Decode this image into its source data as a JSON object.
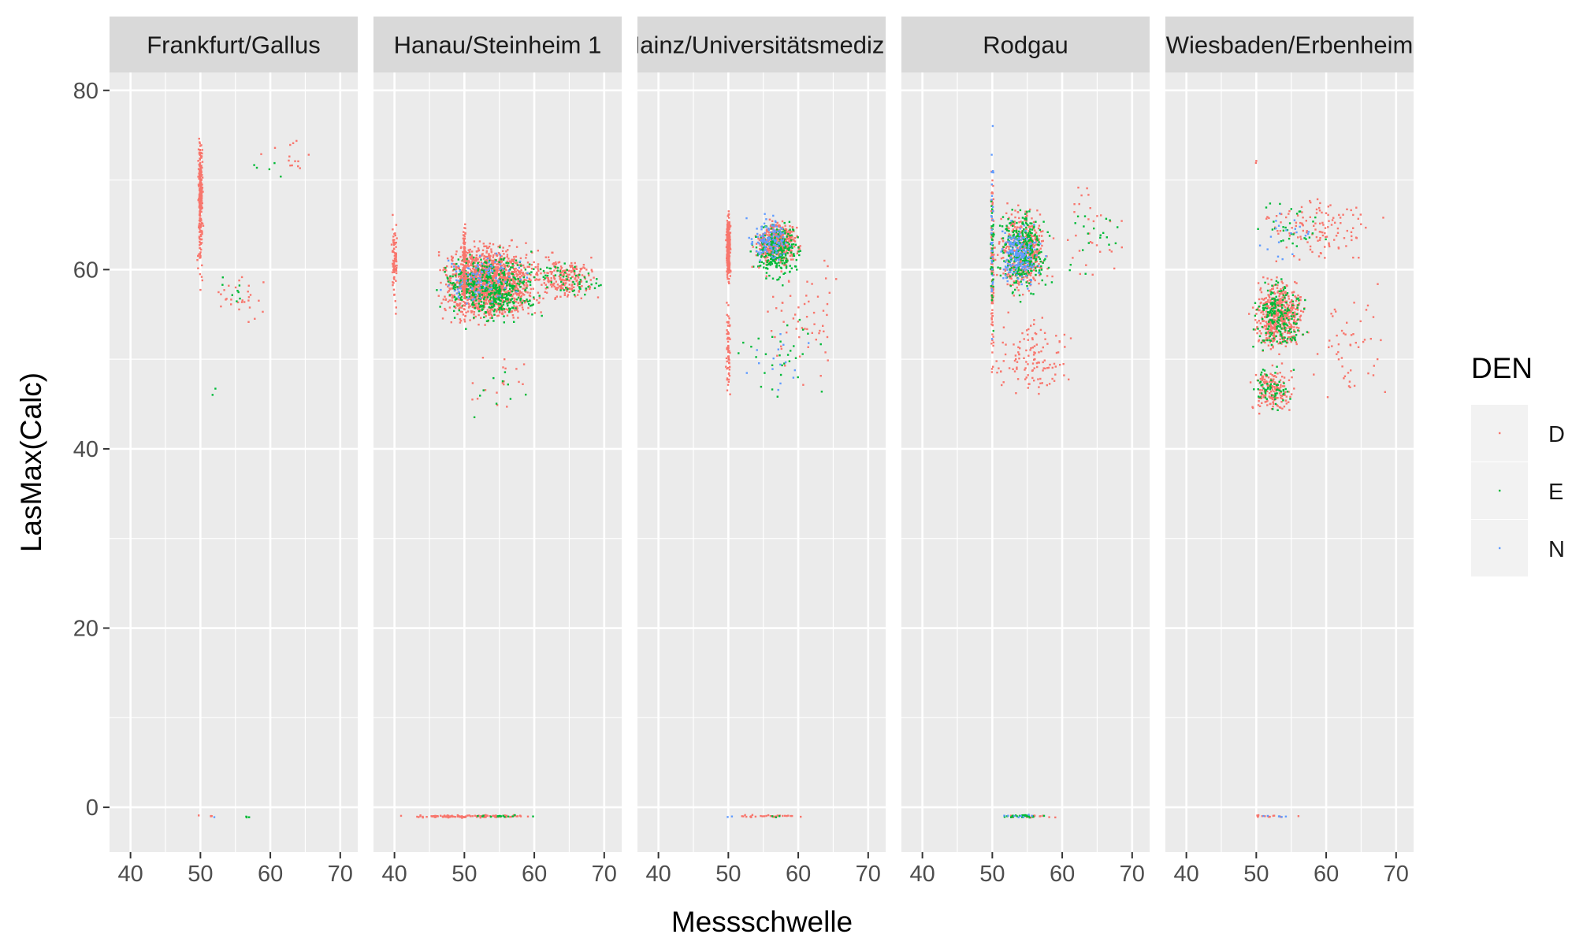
{
  "chart_data": {
    "type": "scatter",
    "facet_by": "Station",
    "xlabel": "Messschwelle",
    "ylabel": "LasMax(Calc)",
    "xlim": [
      37,
      72.5
    ],
    "ylim": [
      -5,
      82
    ],
    "x_ticks": [
      "40",
      "50",
      "60",
      "70"
    ],
    "y_ticks": [
      "0",
      "20",
      "40",
      "60",
      "80"
    ],
    "grid": true,
    "legend": {
      "title": "DEN",
      "position": "right",
      "entries": [
        {
          "label": "D",
          "color": "#F8766D"
        },
        {
          "label": "E",
          "color": "#00BA38"
        },
        {
          "label": "N",
          "color": "#619CFF"
        }
      ]
    },
    "panels": [
      {
        "title": "Frankfurt/Gallus",
        "clusters": [
          {
            "den": "D",
            "x": [
              49.6,
              50.4
            ],
            "y": [
              62,
              76
            ],
            "n": 240
          },
          {
            "den": "D",
            "x": [
              49.5,
              50.5
            ],
            "y": [
              56,
              68
            ],
            "n": 30
          },
          {
            "den": "D",
            "x": [
              51,
              61
            ],
            "y": [
              53,
              61
            ],
            "n": 28
          },
          {
            "den": "D",
            "x": [
              55,
              68
            ],
            "y": [
              70,
              75
            ],
            "n": 14
          },
          {
            "den": "E",
            "x": [
              52,
              58
            ],
            "y": [
              55,
              61
            ],
            "n": 8
          },
          {
            "den": "E",
            "x": [
              57,
              64
            ],
            "y": [
              69,
              73
            ],
            "n": 5
          },
          {
            "den": "E",
            "x": [
              51,
              53
            ],
            "y": [
              45,
              47
            ],
            "n": 2
          },
          {
            "den": "D",
            "x": [
              49,
              53
            ],
            "y": [
              -1.2,
              -0.8
            ],
            "n": 4
          },
          {
            "den": "E",
            "x": [
              56,
              57.5
            ],
            "y": [
              -1.2,
              -0.8
            ],
            "n": 4
          },
          {
            "den": "N",
            "x": [
              51.5,
              52.5
            ],
            "y": [
              -1.2,
              -0.8
            ],
            "n": 1
          }
        ]
      },
      {
        "title": "Hanau/Steinheim 1",
        "clusters": [
          {
            "den": "D",
            "x": [
              39.5,
              40.5
            ],
            "y": [
              54,
              67
            ],
            "n": 80
          },
          {
            "den": "D",
            "x": [
              45,
              62
            ],
            "y": [
              53,
              64
            ],
            "n": 1400
          },
          {
            "den": "E",
            "x": [
              45,
              62
            ],
            "y": [
              53,
              63
            ],
            "n": 450
          },
          {
            "den": "N",
            "x": [
              45,
              60
            ],
            "y": [
              55,
              63
            ],
            "n": 110
          },
          {
            "den": "D",
            "x": [
              49.7,
              50.3
            ],
            "y": [
              53,
              67
            ],
            "n": 150
          },
          {
            "den": "D",
            "x": [
              58,
              71
            ],
            "y": [
              56,
              62
            ],
            "n": 220
          },
          {
            "den": "E",
            "x": [
              58,
              71
            ],
            "y": [
              56,
              62
            ],
            "n": 60
          },
          {
            "den": "D",
            "x": [
              48,
              62
            ],
            "y": [
              42,
              52
            ],
            "n": 18
          },
          {
            "den": "E",
            "x": [
              48,
              62
            ],
            "y": [
              42,
              52
            ],
            "n": 10
          },
          {
            "den": "D",
            "x": [
              40,
              62
            ],
            "y": [
              -1.2,
              -0.8
            ],
            "n": 120
          },
          {
            "den": "E",
            "x": [
              49,
              61
            ],
            "y": [
              -1.2,
              -0.8
            ],
            "n": 15
          }
        ]
      },
      {
        "title": "Mainz/Universitätsmedizin",
        "clusters": [
          {
            "den": "D",
            "x": [
              49.6,
              50.4
            ],
            "y": [
              58,
              67
            ],
            "n": 300
          },
          {
            "den": "D",
            "x": [
              49.6,
              50.4
            ],
            "y": [
              44,
              58
            ],
            "n": 60
          },
          {
            "den": "D",
            "x": [
              53,
              61
            ],
            "y": [
              60,
              66
            ],
            "n": 500
          },
          {
            "den": "E",
            "x": [
              53,
              61
            ],
            "y": [
              58,
              66
            ],
            "n": 250
          },
          {
            "den": "N",
            "x": [
              52,
              60
            ],
            "y": [
              60,
              67
            ],
            "n": 120
          },
          {
            "den": "D",
            "x": [
              50,
              70
            ],
            "y": [
              45,
              65
            ],
            "n": 60
          },
          {
            "den": "E",
            "x": [
              50,
              66
            ],
            "y": [
              43,
              58
            ],
            "n": 30
          },
          {
            "den": "N",
            "x": [
              51,
              64
            ],
            "y": [
              43,
              56
            ],
            "n": 15
          },
          {
            "den": "D",
            "x": [
              49.5,
              63
            ],
            "y": [
              -1.2,
              -0.8
            ],
            "n": 30
          },
          {
            "den": "E",
            "x": [
              53,
              59
            ],
            "y": [
              -1.2,
              -0.8
            ],
            "n": 3
          },
          {
            "den": "N",
            "x": [
              49.5,
              51
            ],
            "y": [
              -1.2,
              -0.8
            ],
            "n": 2
          }
        ]
      },
      {
        "title": "Rodgau",
        "clusters": [
          {
            "den": "D",
            "x": [
              49.7,
              50.3
            ],
            "y": [
              45,
              78
            ],
            "n": 120
          },
          {
            "den": "E",
            "x": [
              49.7,
              50.3
            ],
            "y": [
              50,
              74
            ],
            "n": 40
          },
          {
            "den": "N",
            "x": [
              49.7,
              50.3
            ],
            "y": [
              46,
              79
            ],
            "n": 30
          },
          {
            "den": "D",
            "x": [
              50,
              59
            ],
            "y": [
              56,
              68
            ],
            "n": 420
          },
          {
            "den": "E",
            "x": [
              50,
              59
            ],
            "y": [
              56,
              68
            ],
            "n": 320
          },
          {
            "den": "N",
            "x": [
              50,
              58
            ],
            "y": [
              57,
              66
            ],
            "n": 180
          },
          {
            "den": "D",
            "x": [
              49,
              63
            ],
            "y": [
              44,
              56
            ],
            "n": 120
          },
          {
            "den": "D",
            "x": [
              58,
              70
            ],
            "y": [
              55,
              73
            ],
            "n": 30
          },
          {
            "den": "E",
            "x": [
              58,
              70
            ],
            "y": [
              53,
              73
            ],
            "n": 20
          },
          {
            "den": "D",
            "x": [
              50,
              61
            ],
            "y": [
              -1.2,
              -0.8
            ],
            "n": 20
          },
          {
            "den": "E",
            "x": [
              50,
              58
            ],
            "y": [
              -1.2,
              -0.8
            ],
            "n": 30
          },
          {
            "den": "N",
            "x": [
              51,
              57
            ],
            "y": [
              -1.2,
              -0.8
            ],
            "n": 8
          }
        ]
      },
      {
        "title": "Wiesbaden/Erbenheim",
        "clusters": [
          {
            "den": "D",
            "x": [
              48.5,
              58
            ],
            "y": [
              50,
              60
            ],
            "n": 500
          },
          {
            "den": "E",
            "x": [
              48.5,
              58
            ],
            "y": [
              50,
              60
            ],
            "n": 200
          },
          {
            "den": "D",
            "x": [
              48.5,
              56
            ],
            "y": [
              43,
              50
            ],
            "n": 170
          },
          {
            "den": "E",
            "x": [
              48.5,
              56
            ],
            "y": [
              43,
              50
            ],
            "n": 60
          },
          {
            "den": "D",
            "x": [
              49,
              70
            ],
            "y": [
              60,
              69
            ],
            "n": 120
          },
          {
            "den": "E",
            "x": [
              49,
              62
            ],
            "y": [
              60,
              69
            ],
            "n": 30
          },
          {
            "den": "N",
            "x": [
              49,
              60
            ],
            "y": [
              60,
              68
            ],
            "n": 20
          },
          {
            "den": "D",
            "x": [
              56,
              70
            ],
            "y": [
              43,
              60
            ],
            "n": 50
          },
          {
            "den": "D",
            "x": [
              49.8,
              50.2
            ],
            "y": [
              70,
              74
            ],
            "n": 2
          },
          {
            "den": "D",
            "x": [
              46,
              60
            ],
            "y": [
              -1.2,
              -0.8
            ],
            "n": 14
          },
          {
            "den": "N",
            "x": [
              49,
              56
            ],
            "y": [
              -1.2,
              -0.8
            ],
            "n": 6
          }
        ]
      }
    ]
  }
}
